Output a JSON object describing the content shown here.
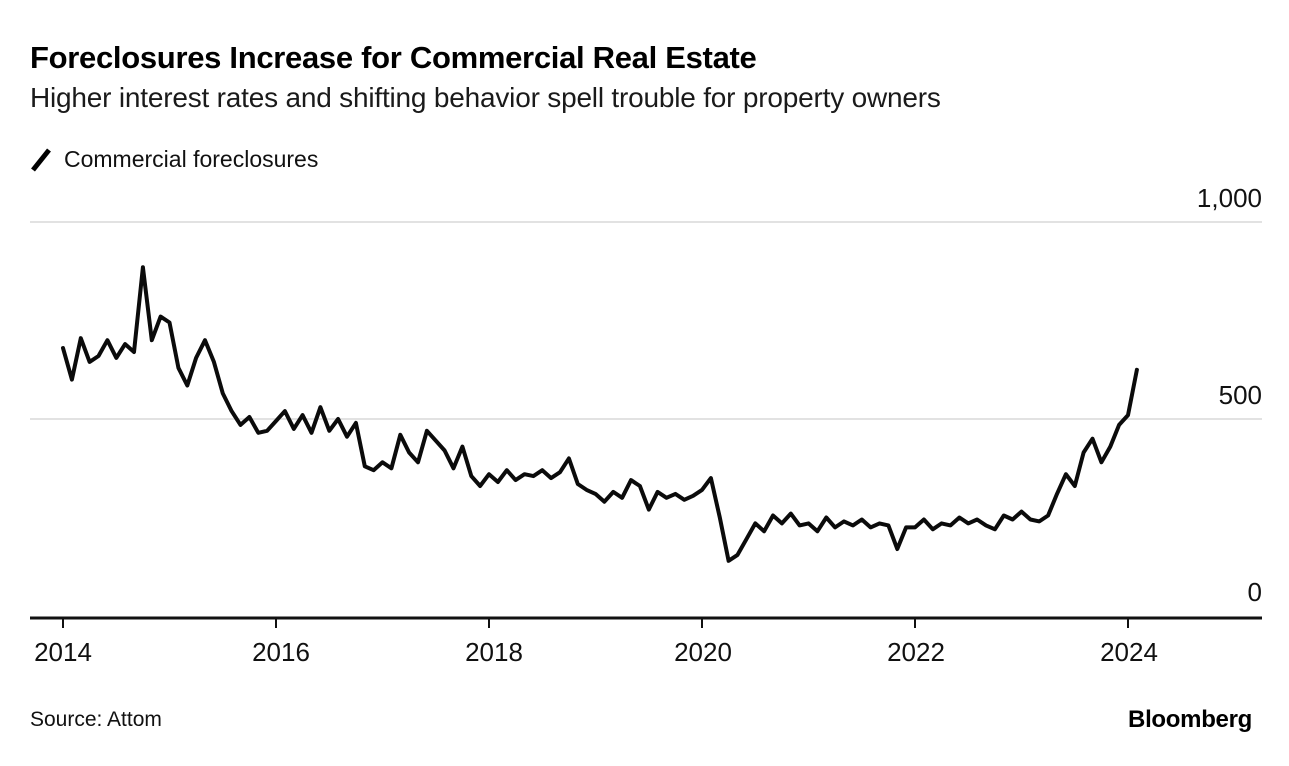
{
  "header": {
    "title": "Foreclosures Increase for Commercial Real Estate",
    "subtitle": "Higher interest rates and shifting behavior spell trouble for property owners"
  },
  "legend": {
    "label": "Commercial foreclosures",
    "color": "#000000"
  },
  "chart_data": {
    "type": "line",
    "title": "Foreclosures Increase for Commercial Real Estate",
    "subtitle": "Higher interest rates and shifting behavior spell trouble for property owners",
    "xlabel": "",
    "ylabel": "",
    "x_unit": "month",
    "x_start": "2014-01",
    "x_end": "2024-02",
    "x_ticks": [
      2014,
      2016,
      2018,
      2020,
      2022,
      2024
    ],
    "x_tick_labels": [
      "2014",
      "2016",
      "2018",
      "2020",
      "2022",
      "2024"
    ],
    "y_ticks": [
      1000,
      500,
      0
    ],
    "y_tick_labels": [
      "1,000",
      "500",
      "0"
    ],
    "ylim": [
      0,
      1000
    ],
    "grid": "horizontal",
    "legend_position": "top-left",
    "line_color": "#0b0b0b",
    "grid_color": "#d9d9d9",
    "axis_color": "#111111",
    "series": [
      {
        "name": "Commercial foreclosures",
        "monthly_values": [
          680,
          600,
          705,
          645,
          660,
          700,
          655,
          690,
          670,
          885,
          700,
          760,
          745,
          630,
          585,
          655,
          700,
          645,
          565,
          520,
          485,
          505,
          465,
          470,
          495,
          520,
          475,
          510,
          465,
          530,
          470,
          500,
          455,
          490,
          380,
          370,
          390,
          375,
          460,
          415,
          390,
          470,
          445,
          420,
          375,
          430,
          355,
          330,
          360,
          340,
          370,
          345,
          360,
          355,
          370,
          350,
          365,
          400,
          335,
          320,
          310,
          290,
          315,
          300,
          345,
          330,
          270,
          315,
          300,
          310,
          295,
          305,
          320,
          350,
          250,
          140,
          155,
          195,
          235,
          215,
          255,
          235,
          260,
          230,
          235,
          215,
          250,
          225,
          240,
          230,
          245,
          225,
          235,
          230,
          170,
          225,
          225,
          245,
          220,
          235,
          230,
          250,
          235,
          245,
          230,
          220,
          255,
          245,
          265,
          245,
          240,
          255,
          310,
          360,
          330,
          415,
          450,
          390,
          430,
          485,
          510,
          625
        ]
      }
    ]
  },
  "footer": {
    "source": "Source: Attom",
    "brand": "Bloomberg"
  }
}
